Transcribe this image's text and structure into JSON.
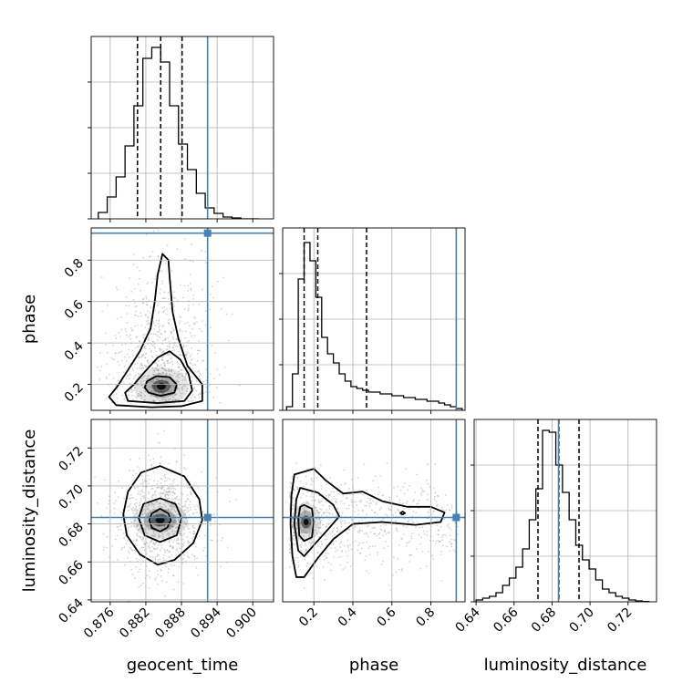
{
  "colors": {
    "truth": "#4682b4",
    "hist": "#000000",
    "grid": "#b0b0b0",
    "density": "#000000"
  },
  "chart_data": [
    {
      "type": "histogram",
      "variable": "geocent_time",
      "xlim": [
        0.8728,
        0.9035
      ],
      "bins": [
        0.874,
        0.8755,
        0.877,
        0.8785,
        0.88,
        0.8815,
        0.883,
        0.8845,
        0.886,
        0.8875,
        0.889,
        0.8905,
        0.892,
        0.8935,
        0.895,
        0.8965,
        0.898,
        0.8995,
        0.901
      ],
      "counts": [
        0.035,
        0.12,
        0.23,
        0.4,
        0.62,
        0.88,
        0.94,
        0.86,
        0.62,
        0.41,
        0.27,
        0.14,
        0.06,
        0.03,
        0.01,
        0.005,
        0,
        0
      ],
      "quantile_lines": [
        0.8806,
        0.8845,
        0.8881
      ],
      "truth": 0.8924,
      "y_ticks": 4,
      "xlabel": "geocent_time",
      "xticks": [
        "0.876",
        "0.882",
        "0.888",
        "0.894",
        "0.900"
      ],
      "xtick_values": [
        0.876,
        0.882,
        0.888,
        0.894,
        0.9
      ]
    },
    {
      "type": "histogram",
      "variable": "phase",
      "xlim": [
        0.04,
        0.975
      ],
      "bins": [
        0.06,
        0.09,
        0.12,
        0.15,
        0.18,
        0.21,
        0.24,
        0.27,
        0.3,
        0.33,
        0.36,
        0.39,
        0.42,
        0.45,
        0.48,
        0.51,
        0.54,
        0.57,
        0.6,
        0.63,
        0.66,
        0.69,
        0.72,
        0.75,
        0.78,
        0.81,
        0.84,
        0.87,
        0.9,
        0.93,
        0.96
      ],
      "counts": [
        0.02,
        0.2,
        0.72,
        0.92,
        0.82,
        0.62,
        0.4,
        0.31,
        0.26,
        0.2,
        0.16,
        0.13,
        0.12,
        0.11,
        0.1,
        0.1,
        0.09,
        0.09,
        0.08,
        0.08,
        0.07,
        0.07,
        0.06,
        0.06,
        0.05,
        0.05,
        0.04,
        0.03,
        0.02,
        0.01
      ],
      "quantile_lines": [
        0.15,
        0.22,
        0.47
      ],
      "truth": 0.93,
      "y_ticks": 4,
      "xlabel": "phase",
      "xticks": [
        "0.2",
        "0.4",
        "0.6",
        "0.8"
      ],
      "xtick_values": [
        0.2,
        0.4,
        0.6,
        0.8
      ]
    },
    {
      "type": "histogram",
      "variable": "luminosity_distance",
      "xlim": [
        0.639,
        0.735
      ],
      "bins": [
        0.64,
        0.6435,
        0.647,
        0.6505,
        0.654,
        0.6575,
        0.661,
        0.6645,
        0.668,
        0.6715,
        0.675,
        0.6785,
        0.682,
        0.6855,
        0.689,
        0.6925,
        0.696,
        0.6995,
        0.703,
        0.7065,
        0.71,
        0.7135,
        0.717,
        0.7205,
        0.724,
        0.7275,
        0.731
      ],
      "counts": [
        0.01,
        0.02,
        0.03,
        0.05,
        0.09,
        0.13,
        0.19,
        0.29,
        0.45,
        0.62,
        0.94,
        0.93,
        0.75,
        0.6,
        0.45,
        0.31,
        0.23,
        0.18,
        0.12,
        0.07,
        0.05,
        0.03,
        0.02,
        0.01,
        0.005,
        0.002
      ],
      "quantile_lines": [
        0.6726,
        0.6836,
        0.6942
      ],
      "truth": 0.6834,
      "y_ticks": 4,
      "xlabel": "luminosity_distance",
      "xticks": [
        "0.64",
        "0.66",
        "0.68",
        "0.70",
        "0.72"
      ],
      "xtick_values": [
        0.64,
        0.66,
        0.68,
        0.7,
        0.72
      ]
    },
    {
      "type": "2d-density",
      "x_variable": "geocent_time",
      "y_variable": "phase",
      "xlim": [
        0.8728,
        0.9035
      ],
      "ylim": [
        0.075,
        0.955
      ],
      "truth": [
        0.8924,
        0.93
      ],
      "ylabel": "phase",
      "yticks": [
        "0.2",
        "0.4",
        "0.6",
        "0.8"
      ],
      "ytick_values": [
        0.2,
        0.4,
        0.6,
        0.8
      ],
      "peak": [
        0.8846,
        0.19
      ],
      "contours": [
        [
          [
            0.8825,
            0.16
          ],
          [
            0.8845,
            0.145
          ],
          [
            0.8868,
            0.16
          ],
          [
            0.8872,
            0.2
          ],
          [
            0.886,
            0.235
          ],
          [
            0.8838,
            0.24
          ],
          [
            0.8822,
            0.215
          ],
          [
            0.8818,
            0.185
          ]
        ],
        [
          [
            0.879,
            0.12
          ],
          [
            0.884,
            0.11
          ],
          [
            0.8885,
            0.12
          ],
          [
            0.8898,
            0.17
          ],
          [
            0.8892,
            0.25
          ],
          [
            0.8878,
            0.32
          ],
          [
            0.886,
            0.36
          ],
          [
            0.884,
            0.33
          ],
          [
            0.8818,
            0.26
          ],
          [
            0.88,
            0.2
          ],
          [
            0.8785,
            0.16
          ]
        ],
        [
          [
            0.877,
            0.1
          ],
          [
            0.883,
            0.09
          ],
          [
            0.888,
            0.095
          ],
          [
            0.8915,
            0.12
          ],
          [
            0.8915,
            0.2
          ],
          [
            0.889,
            0.29
          ],
          [
            0.8875,
            0.42
          ],
          [
            0.8865,
            0.55
          ],
          [
            0.886,
            0.72
          ],
          [
            0.8858,
            0.8
          ],
          [
            0.8848,
            0.83
          ],
          [
            0.884,
            0.73
          ],
          [
            0.8835,
            0.6
          ],
          [
            0.8828,
            0.47
          ],
          [
            0.881,
            0.36
          ],
          [
            0.879,
            0.27
          ],
          [
            0.8772,
            0.19
          ],
          [
            0.8758,
            0.14
          ]
        ]
      ]
    },
    {
      "type": "2d-density",
      "x_variable": "geocent_time",
      "y_variable": "luminosity_distance",
      "xlim": [
        0.8728,
        0.9035
      ],
      "ylim": [
        0.639,
        0.735
      ],
      "truth": [
        0.8924,
        0.6834
      ],
      "xlabel": "geocent_time",
      "ylabel": "luminosity_distance",
      "xticks": [
        "0.876",
        "0.882",
        "0.888",
        "0.894",
        "0.900"
      ],
      "xtick_values": [
        0.876,
        0.882,
        0.888,
        0.894,
        0.9
      ],
      "yticks": [
        "0.64",
        "0.66",
        "0.68",
        "0.70",
        "0.72"
      ],
      "ytick_values": [
        0.64,
        0.66,
        0.68,
        0.7,
        0.72
      ],
      "peak": [
        0.8844,
        0.682
      ],
      "contours": [
        [
          [
            0.8844,
            0.688
          ],
          [
            0.8858,
            0.6855
          ],
          [
            0.8862,
            0.682
          ],
          [
            0.8856,
            0.678
          ],
          [
            0.8844,
            0.676
          ],
          [
            0.883,
            0.678
          ],
          [
            0.8826,
            0.682
          ],
          [
            0.883,
            0.6855
          ]
        ],
        [
          [
            0.8844,
            0.6935
          ],
          [
            0.887,
            0.6905
          ],
          [
            0.888,
            0.683
          ],
          [
            0.8872,
            0.674
          ],
          [
            0.8844,
            0.6705
          ],
          [
            0.8818,
            0.674
          ],
          [
            0.8808,
            0.683
          ],
          [
            0.8816,
            0.6905
          ]
        ],
        [
          [
            0.8844,
            0.7105
          ],
          [
            0.8885,
            0.705
          ],
          [
            0.891,
            0.693
          ],
          [
            0.8915,
            0.682
          ],
          [
            0.89,
            0.67
          ],
          [
            0.8868,
            0.661
          ],
          [
            0.884,
            0.6585
          ],
          [
            0.881,
            0.664
          ],
          [
            0.8788,
            0.674
          ],
          [
            0.8782,
            0.685
          ],
          [
            0.879,
            0.697
          ],
          [
            0.8812,
            0.707
          ]
        ]
      ]
    },
    {
      "type": "2d-density",
      "x_variable": "phase",
      "y_variable": "luminosity_distance",
      "xlim": [
        0.04,
        0.975
      ],
      "ylim": [
        0.639,
        0.735
      ],
      "truth": [
        0.93,
        0.6834
      ],
      "xlabel": "phase",
      "xticks": [
        "0.2",
        "0.4",
        "0.6",
        "0.8"
      ],
      "xtick_values": [
        0.2,
        0.4,
        0.6,
        0.8
      ],
      "peak": [
        0.16,
        0.681
      ],
      "contours": [
        [
          [
            0.15,
            0.69
          ],
          [
            0.19,
            0.688
          ],
          [
            0.2,
            0.681
          ],
          [
            0.19,
            0.673
          ],
          [
            0.15,
            0.671
          ],
          [
            0.125,
            0.674
          ],
          [
            0.12,
            0.683
          ],
          [
            0.13,
            0.689
          ]
        ],
        [
          [
            0.13,
            0.699
          ],
          [
            0.22,
            0.6965
          ],
          [
            0.3,
            0.69
          ],
          [
            0.33,
            0.684
          ],
          [
            0.28,
            0.678
          ],
          [
            0.21,
            0.67
          ],
          [
            0.15,
            0.663
          ],
          [
            0.12,
            0.666
          ],
          [
            0.1,
            0.68
          ],
          [
            0.11,
            0.693
          ]
        ],
        [
          [
            0.1,
            0.706
          ],
          [
            0.2,
            0.709
          ],
          [
            0.26,
            0.703
          ],
          [
            0.35,
            0.696
          ],
          [
            0.45,
            0.697
          ],
          [
            0.55,
            0.692
          ],
          [
            0.68,
            0.689
          ],
          [
            0.8,
            0.689
          ],
          [
            0.87,
            0.686
          ],
          [
            0.85,
            0.681
          ],
          [
            0.72,
            0.6795
          ],
          [
            0.55,
            0.681
          ],
          [
            0.4,
            0.68
          ],
          [
            0.3,
            0.672
          ],
          [
            0.22,
            0.662
          ],
          [
            0.15,
            0.652
          ],
          [
            0.11,
            0.652
          ],
          [
            0.09,
            0.663
          ],
          [
            0.08,
            0.68
          ],
          [
            0.085,
            0.695
          ]
        ],
        [
          [
            0.655,
            0.6865
          ],
          [
            0.667,
            0.6857
          ],
          [
            0.655,
            0.685
          ],
          [
            0.643,
            0.6857
          ]
        ]
      ]
    }
  ]
}
